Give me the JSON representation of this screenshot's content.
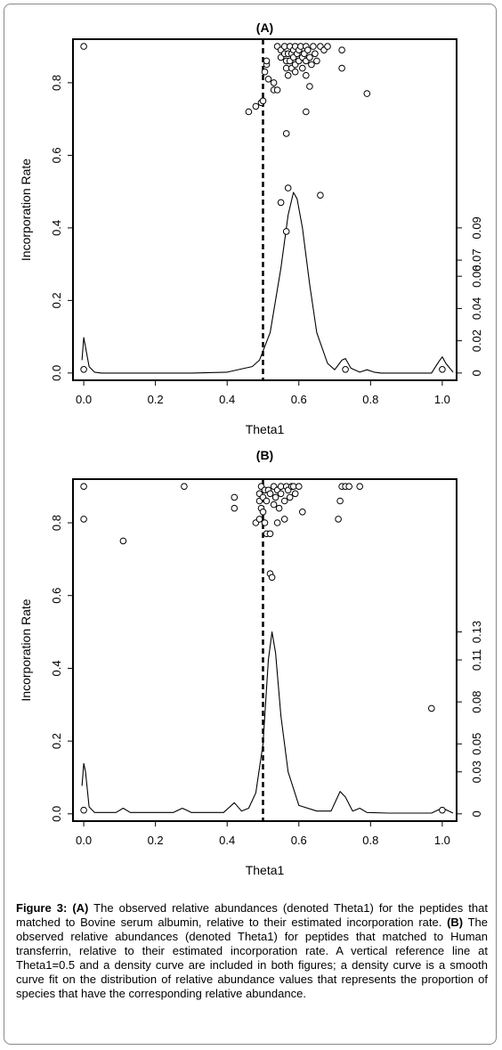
{
  "chart_data": [
    {
      "type": "scatter",
      "title": "(A)",
      "xlabel": "Theta1",
      "ylabel": "Incorporation Rate",
      "xlim": [
        -0.03,
        1.04
      ],
      "ylim": [
        -0.02,
        0.92
      ],
      "x_ticks": [
        "0.0",
        "0.2",
        "0.4",
        "0.6",
        "0.8",
        "1.0"
      ],
      "x_tick_values": [
        0,
        0.2,
        0.4,
        0.6,
        0.8,
        1.0
      ],
      "y_ticks": [
        "0.0",
        "0.2",
        "0.4",
        "0.6",
        "0.8"
      ],
      "y_tick_values": [
        0,
        0.2,
        0.4,
        0.6,
        0.8
      ],
      "y2_ticks": [
        "0",
        "0.02",
        "0.04",
        "0.06",
        "0.07",
        "0.09"
      ],
      "y2_tick_values": [
        0,
        0.02,
        0.04,
        0.06,
        0.07,
        0.09
      ],
      "y2_lim": [
        -0.0045,
        0.207
      ],
      "reference_line_x": 0.5,
      "points": [
        [
          0.0,
          0.9
        ],
        [
          0.0,
          0.01
        ],
        [
          0.46,
          0.72
        ],
        [
          0.48,
          0.735
        ],
        [
          0.495,
          0.745
        ],
        [
          0.5,
          0.75
        ],
        [
          0.505,
          0.83
        ],
        [
          0.51,
          0.85
        ],
        [
          0.51,
          0.86
        ],
        [
          0.515,
          0.81
        ],
        [
          0.53,
          0.8
        ],
        [
          0.53,
          0.78
        ],
        [
          0.54,
          0.78
        ],
        [
          0.54,
          0.9
        ],
        [
          0.55,
          0.89
        ],
        [
          0.55,
          0.87
        ],
        [
          0.56,
          0.88
        ],
        [
          0.56,
          0.9
        ],
        [
          0.565,
          0.86
        ],
        [
          0.565,
          0.84
        ],
        [
          0.57,
          0.82
        ],
        [
          0.57,
          0.88
        ],
        [
          0.575,
          0.9
        ],
        [
          0.575,
          0.86
        ],
        [
          0.58,
          0.84
        ],
        [
          0.58,
          0.88
        ],
        [
          0.585,
          0.89
        ],
        [
          0.585,
          0.87
        ],
        [
          0.59,
          0.9
        ],
        [
          0.59,
          0.85
        ],
        [
          0.595,
          0.88
        ],
        [
          0.6,
          0.86
        ],
        [
          0.6,
          0.89
        ],
        [
          0.605,
          0.9
        ],
        [
          0.61,
          0.87
        ],
        [
          0.61,
          0.84
        ],
        [
          0.615,
          0.88
        ],
        [
          0.62,
          0.86
        ],
        [
          0.62,
          0.9
        ],
        [
          0.625,
          0.89
        ],
        [
          0.63,
          0.87
        ],
        [
          0.635,
          0.85
        ],
        [
          0.64,
          0.9
        ],
        [
          0.645,
          0.88
        ],
        [
          0.65,
          0.86
        ],
        [
          0.66,
          0.9
        ],
        [
          0.67,
          0.89
        ],
        [
          0.68,
          0.9
        ],
        [
          0.72,
          0.89
        ],
        [
          0.72,
          0.84
        ],
        [
          0.59,
          0.83
        ],
        [
          0.62,
          0.82
        ],
        [
          0.63,
          0.79
        ],
        [
          0.62,
          0.72
        ],
        [
          0.565,
          0.66
        ],
        [
          0.57,
          0.51
        ],
        [
          0.66,
          0.49
        ],
        [
          0.55,
          0.47
        ],
        [
          0.565,
          0.39
        ],
        [
          0.79,
          0.77
        ],
        [
          0.73,
          0.01
        ],
        [
          1.0,
          0.01
        ]
      ],
      "density": [
        [
          -0.005,
          0.008
        ],
        [
          0.0,
          0.022
        ],
        [
          0.005,
          0.016
        ],
        [
          0.015,
          0.004
        ],
        [
          0.03,
          0.0005
        ],
        [
          0.05,
          0.0
        ],
        [
          0.3,
          0.0
        ],
        [
          0.4,
          0.0005
        ],
        [
          0.45,
          0.003
        ],
        [
          0.47,
          0.004
        ],
        [
          0.49,
          0.008
        ],
        [
          0.52,
          0.025
        ],
        [
          0.55,
          0.065
        ],
        [
          0.57,
          0.098
        ],
        [
          0.585,
          0.112
        ],
        [
          0.595,
          0.108
        ],
        [
          0.61,
          0.09
        ],
        [
          0.63,
          0.055
        ],
        [
          0.65,
          0.025
        ],
        [
          0.68,
          0.006
        ],
        [
          0.7,
          0.002
        ],
        [
          0.72,
          0.008
        ],
        [
          0.73,
          0.009
        ],
        [
          0.745,
          0.003
        ],
        [
          0.77,
          0.0005
        ],
        [
          0.79,
          0.002
        ],
        [
          0.81,
          0.0005
        ],
        [
          0.83,
          0.0
        ],
        [
          0.97,
          0.0
        ],
        [
          0.99,
          0.007
        ],
        [
          1.0,
          0.01
        ],
        [
          1.01,
          0.006
        ],
        [
          1.03,
          0.0005
        ]
      ]
    },
    {
      "type": "scatter",
      "title": "(B)",
      "xlabel": "Theta1",
      "ylabel": "Incorporation Rate",
      "xlim": [
        -0.03,
        1.04
      ],
      "ylim": [
        -0.02,
        0.92
      ],
      "x_ticks": [
        "0.0",
        "0.2",
        "0.4",
        "0.6",
        "0.8",
        "1.0"
      ],
      "x_tick_values": [
        0,
        0.2,
        0.4,
        0.6,
        0.8,
        1.0
      ],
      "y_ticks": [
        "0.0",
        "0.2",
        "0.4",
        "0.6",
        "0.8"
      ],
      "y_tick_values": [
        0,
        0.2,
        0.4,
        0.6,
        0.8
      ],
      "y2_ticks": [
        "0",
        "0.03",
        "0.05",
        "0.08",
        "0.11",
        "0.13"
      ],
      "y2_tick_values": [
        0,
        0.03,
        0.05,
        0.08,
        0.11,
        0.13
      ],
      "y2_lim": [
        -0.0052,
        0.2392
      ],
      "reference_line_x": 0.5,
      "points": [
        [
          0.0,
          0.9
        ],
        [
          0.0,
          0.81
        ],
        [
          0.0,
          0.01
        ],
        [
          0.11,
          0.75
        ],
        [
          0.28,
          0.9
        ],
        [
          0.42,
          0.87
        ],
        [
          0.42,
          0.84
        ],
        [
          0.48,
          0.8
        ],
        [
          0.49,
          0.81
        ],
        [
          0.49,
          0.86
        ],
        [
          0.49,
          0.88
        ],
        [
          0.495,
          0.9
        ],
        [
          0.495,
          0.84
        ],
        [
          0.5,
          0.87
        ],
        [
          0.5,
          0.83
        ],
        [
          0.505,
          0.89
        ],
        [
          0.505,
          0.8
        ],
        [
          0.51,
          0.77
        ],
        [
          0.51,
          0.86
        ],
        [
          0.515,
          0.89
        ],
        [
          0.52,
          0.88
        ],
        [
          0.52,
          0.77
        ],
        [
          0.52,
          0.66
        ],
        [
          0.525,
          0.65
        ],
        [
          0.53,
          0.9
        ],
        [
          0.53,
          0.85
        ],
        [
          0.535,
          0.87
        ],
        [
          0.54,
          0.89
        ],
        [
          0.54,
          0.8
        ],
        [
          0.545,
          0.84
        ],
        [
          0.55,
          0.9
        ],
        [
          0.55,
          0.88
        ],
        [
          0.56,
          0.86
        ],
        [
          0.56,
          0.81
        ],
        [
          0.565,
          0.9
        ],
        [
          0.57,
          0.89
        ],
        [
          0.575,
          0.87
        ],
        [
          0.58,
          0.9
        ],
        [
          0.585,
          0.9
        ],
        [
          0.59,
          0.88
        ],
        [
          0.6,
          0.9
        ],
        [
          0.61,
          0.83
        ],
        [
          0.71,
          0.81
        ],
        [
          0.715,
          0.86
        ],
        [
          0.72,
          0.9
        ],
        [
          0.73,
          0.9
        ],
        [
          0.74,
          0.9
        ],
        [
          0.77,
          0.9
        ],
        [
          0.97,
          0.29
        ],
        [
          1.0,
          0.01
        ]
      ],
      "density": [
        [
          -0.005,
          0.02
        ],
        [
          0.0,
          0.036
        ],
        [
          0.005,
          0.03
        ],
        [
          0.015,
          0.005
        ],
        [
          0.03,
          0.001
        ],
        [
          0.09,
          0.001
        ],
        [
          0.11,
          0.004
        ],
        [
          0.13,
          0.001
        ],
        [
          0.25,
          0.001
        ],
        [
          0.275,
          0.004
        ],
        [
          0.3,
          0.001
        ],
        [
          0.39,
          0.001
        ],
        [
          0.42,
          0.008
        ],
        [
          0.44,
          0.002
        ],
        [
          0.46,
          0.004
        ],
        [
          0.48,
          0.015
        ],
        [
          0.5,
          0.05
        ],
        [
          0.515,
          0.11
        ],
        [
          0.525,
          0.13
        ],
        [
          0.535,
          0.115
        ],
        [
          0.55,
          0.07
        ],
        [
          0.57,
          0.03
        ],
        [
          0.6,
          0.006
        ],
        [
          0.65,
          0.002
        ],
        [
          0.69,
          0.002
        ],
        [
          0.715,
          0.016
        ],
        [
          0.73,
          0.012
        ],
        [
          0.75,
          0.002
        ],
        [
          0.77,
          0.004
        ],
        [
          0.79,
          0.001
        ],
        [
          0.85,
          0.0005
        ],
        [
          0.97,
          0.0005
        ],
        [
          0.99,
          0.003
        ],
        [
          1.0,
          0.004
        ],
        [
          1.01,
          0.003
        ],
        [
          1.03,
          0.0005
        ]
      ]
    }
  ],
  "caption": {
    "label_fig": "Figure 3:",
    "label_a": "(A)",
    "text_a": " The observed relative abundances (denoted Theta1) for the peptides that matched to Bovine serum albumin, relative to their estimated incorporation rate. ",
    "label_b": "(B)",
    "text_b": " The observed relative abundances (denoted Theta1) for peptides that matched to Human transferrin, relative to their estimated incorporation rate. A vertical reference line at Theta1=0.5 and a density curve are included in both figures; a density curve is a smooth curve fit on the distribution of relative abundance values that represents the proportion of species that have the corresponding relative abundance."
  }
}
